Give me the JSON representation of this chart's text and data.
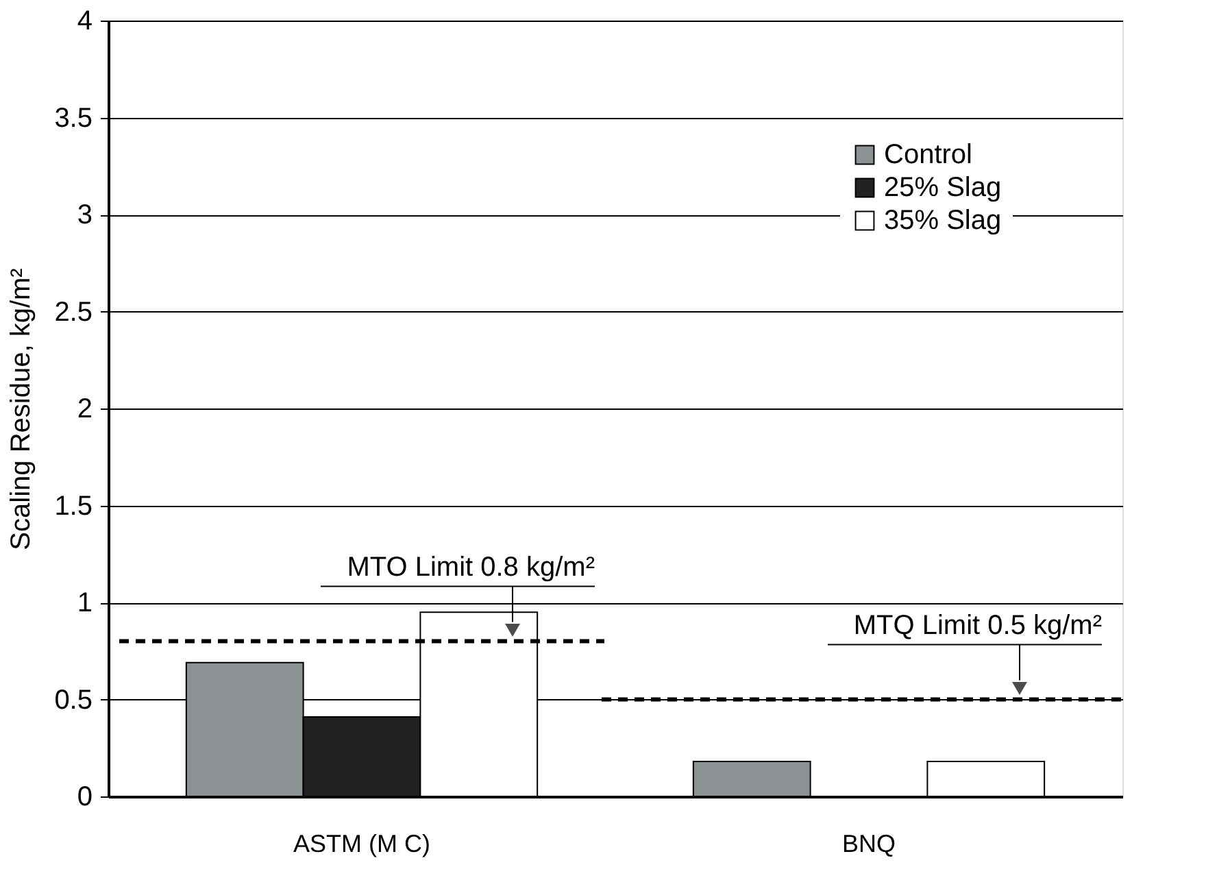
{
  "chart_data": {
    "type": "bar",
    "ylabel": "Scaling Residue, kg/m²",
    "categories": [
      "ASTM (M C)",
      "BNQ"
    ],
    "series": [
      {
        "name": "Control",
        "color": "#8c9194",
        "values": [
          0.69,
          0.18
        ]
      },
      {
        "name": "25% Slag",
        "color": "#222222",
        "values": [
          0.41,
          null
        ]
      },
      {
        "name": "35% Slag",
        "color": "#ffffff",
        "values": [
          0.95,
          0.18
        ]
      }
    ],
    "ylim": [
      0,
      4
    ],
    "yticks": [
      0,
      0.5,
      1,
      1.5,
      2,
      2.5,
      3,
      3.5,
      4
    ],
    "grid": "y",
    "legend": "top right",
    "ref_lines": [
      {
        "axis": "y",
        "value": 0.8,
        "color": "#000000",
        "line_style": "dashed",
        "label": "MTO Limit 0.8 kg/m²"
      },
      {
        "axis": "y",
        "value": 0.5,
        "color": "#000000",
        "line_style": "dashed",
        "label": "MTQ Limit 0.5 kg/m²"
      }
    ]
  }
}
